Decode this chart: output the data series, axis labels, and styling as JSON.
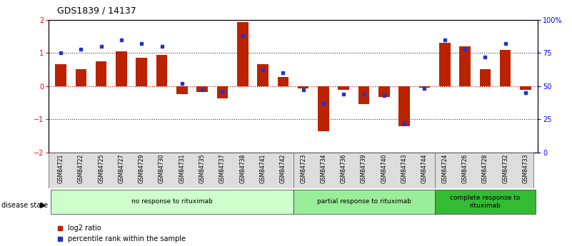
{
  "title": "GDS1839 / 14137",
  "samples": [
    "GSM84721",
    "GSM84722",
    "GSM84725",
    "GSM84727",
    "GSM84729",
    "GSM84730",
    "GSM84731",
    "GSM84735",
    "GSM84737",
    "GSM84738",
    "GSM84741",
    "GSM84742",
    "GSM84723",
    "GSM84734",
    "GSM84736",
    "GSM84739",
    "GSM84740",
    "GSM84743",
    "GSM84744",
    "GSM84724",
    "GSM84726",
    "GSM84728",
    "GSM84732",
    "GSM84733"
  ],
  "log2_ratio": [
    0.65,
    0.5,
    0.75,
    1.05,
    0.85,
    0.95,
    -0.25,
    -0.18,
    -0.38,
    1.93,
    0.65,
    0.28,
    -0.08,
    -1.35,
    -0.12,
    -0.55,
    -0.32,
    -1.2,
    -0.05,
    1.3,
    1.2,
    0.5,
    1.1,
    -0.12
  ],
  "percentile_rank": [
    75,
    78,
    80,
    85,
    82,
    80,
    52,
    47,
    46,
    88,
    62,
    60,
    47,
    37,
    44,
    44,
    43,
    22,
    48,
    85,
    78,
    72,
    82,
    45
  ],
  "groups": [
    {
      "label": "no response to rituximab",
      "start": 0,
      "end": 11,
      "color": "#ccffcc"
    },
    {
      "label": "partial response to rituximab",
      "start": 12,
      "end": 18,
      "color": "#99ee99"
    },
    {
      "label": "complete response to\nrituximab",
      "start": 19,
      "end": 23,
      "color": "#33bb33"
    }
  ],
  "bar_color": "#bb2200",
  "dot_color": "#2233cc",
  "ylim": [
    -2,
    2
  ],
  "yticks_left": [
    -2,
    -1,
    0,
    1,
    2
  ],
  "yticks_right": [
    0,
    25,
    50,
    75,
    100
  ],
  "hline_values": [
    -1,
    0,
    1
  ],
  "zero_line_color": "#cc0000",
  "dotted_line_color": "#333333",
  "bg_color": "#ffffff",
  "disease_state_label": "disease state",
  "legend_items": [
    {
      "label": "log2 ratio",
      "color": "#bb2200"
    },
    {
      "label": "percentile rank within the sample",
      "color": "#2233cc"
    }
  ]
}
